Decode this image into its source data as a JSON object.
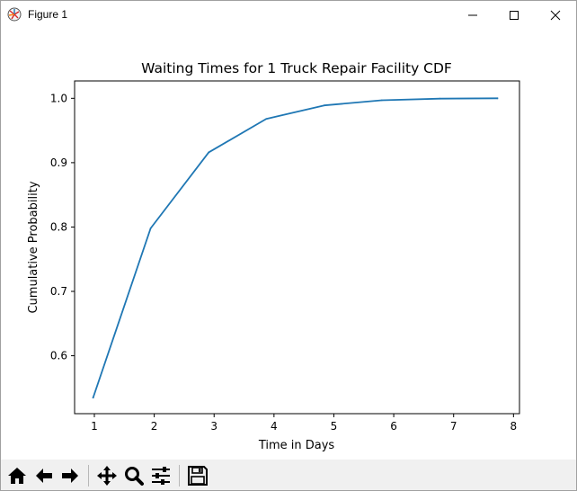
{
  "window": {
    "title": "Figure 1",
    "buttons": {
      "minimize": "minimize-icon",
      "maximize": "maximize-icon",
      "close": "close-icon"
    }
  },
  "toolbar": {
    "icons": [
      "home-icon",
      "back-icon",
      "forward-icon",
      "pan-icon",
      "zoom-icon",
      "configure-subplots-icon",
      "save-icon"
    ]
  },
  "chart_data": {
    "type": "line",
    "title": "Waiting Times for 1 Truck Repair Facility CDF",
    "xlabel": "Time in Days",
    "ylabel": "Cumulative Probability",
    "xlim": [
      0.67,
      8.1
    ],
    "ylim": [
      0.51,
      1.027
    ],
    "xticks": [
      "1",
      "2",
      "3",
      "4",
      "5",
      "6",
      "7",
      "8"
    ],
    "yticks": [
      "0.6",
      "0.7",
      "0.8",
      "0.9",
      "1.0"
    ],
    "grid": false,
    "series": [
      {
        "color": "#1f77b4",
        "x": [
          0.98,
          1.94,
          2.91,
          3.87,
          4.84,
          5.8,
          6.77,
          7.73
        ],
        "y": [
          0.535,
          0.798,
          0.916,
          0.968,
          0.989,
          0.997,
          0.9995,
          1.0
        ]
      }
    ]
  }
}
